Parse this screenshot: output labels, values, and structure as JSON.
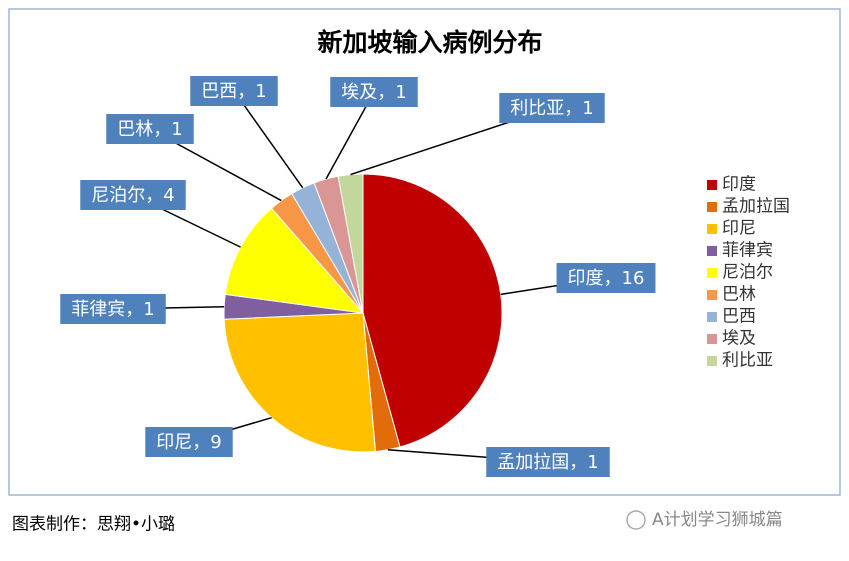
{
  "chart_data": {
    "type": "pie",
    "title": "新加坡输入病例分布",
    "categories": [
      "印度",
      "孟加拉国",
      "印尼",
      "菲律宾",
      "尼泊尔",
      "巴林",
      "巴西",
      "埃及",
      "利比亚"
    ],
    "values": [
      16,
      1,
      9,
      1,
      4,
      1,
      1,
      1,
      1
    ],
    "value_labels": [
      "印度，16",
      "孟加拉国，1",
      "印尼，9",
      "菲律宾，1",
      "尼泊尔，4",
      "巴林，1",
      "巴西，1",
      "埃及，1",
      "利比亚，1"
    ],
    "colors": [
      "#c00000",
      "#e26b0a",
      "#ffc000",
      "#7f5f9f",
      "#ffff00",
      "#f79646",
      "#95b3d7",
      "#d99694",
      "#c3d69b"
    ],
    "legend": "right"
  },
  "footer": "图表制作：思翔•小璐",
  "watermark": "A计划学习狮城篇"
}
